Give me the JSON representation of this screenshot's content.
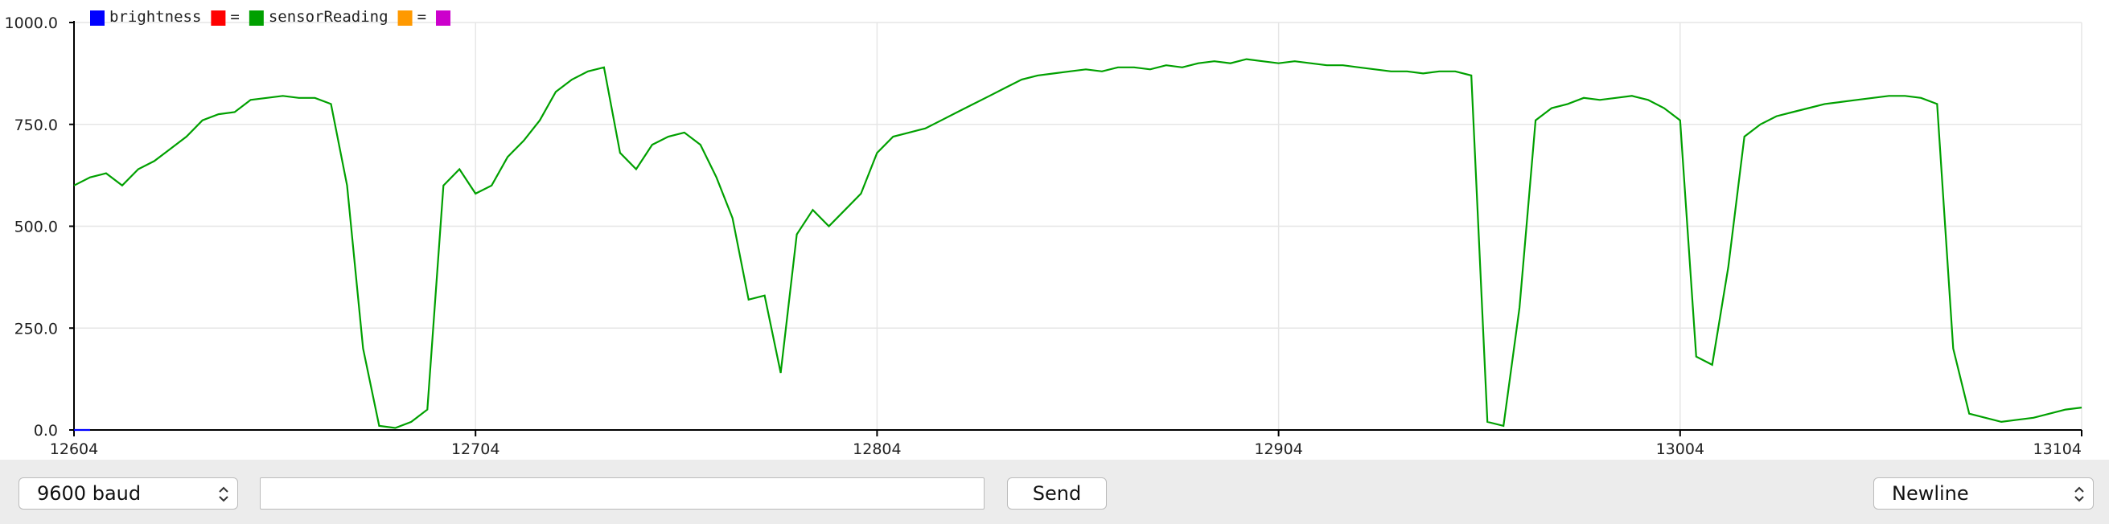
{
  "chart_data": {
    "type": "line",
    "legend_entries": [
      {
        "name": "brightness",
        "color": "#0000ff"
      },
      {
        "name": "=",
        "color": "#ff0000"
      },
      {
        "name": "sensorReading",
        "color": "#00a000"
      },
      {
        "name": "=",
        "color": "#ff9900"
      },
      {
        "color": "#cc00cc"
      }
    ],
    "series": [
      {
        "color": "#0000ff",
        "x": [
          12604,
          12606,
          12608
        ],
        "values": [
          0,
          0,
          0
        ]
      },
      {
        "color": "#00a000",
        "x": [
          12604,
          12608,
          12612,
          12616,
          12620,
          12624,
          12628,
          12632,
          12636,
          12640,
          12644,
          12648,
          12652,
          12656,
          12660,
          12664,
          12668,
          12672,
          12676,
          12680,
          12684,
          12688,
          12692,
          12696,
          12700,
          12704,
          12708,
          12712,
          12716,
          12720,
          12724,
          12728,
          12732,
          12736,
          12740,
          12744,
          12748,
          12752,
          12756,
          12760,
          12764,
          12768,
          12772,
          12776,
          12780,
          12784,
          12788,
          12792,
          12796,
          12800,
          12804,
          12808,
          12812,
          12816,
          12820,
          12824,
          12828,
          12832,
          12836,
          12840,
          12844,
          12848,
          12852,
          12856,
          12860,
          12864,
          12868,
          12872,
          12876,
          12880,
          12884,
          12888,
          12892,
          12896,
          12900,
          12904,
          12908,
          12912,
          12916,
          12920,
          12924,
          12928,
          12932,
          12936,
          12940,
          12944,
          12948,
          12952,
          12956,
          12960,
          12964,
          12968,
          12972,
          12976,
          12980,
          12984,
          12988,
          12992,
          12996,
          13000,
          13004,
          13008,
          13012,
          13016,
          13020,
          13024,
          13028,
          13032,
          13036,
          13040,
          13044,
          13048,
          13052,
          13056,
          13060,
          13064,
          13068,
          13072,
          13076,
          13080,
          13084,
          13088,
          13092,
          13096,
          13100,
          13104
        ],
        "values": [
          600,
          620,
          630,
          600,
          640,
          660,
          690,
          720,
          760,
          775,
          780,
          810,
          815,
          820,
          815,
          815,
          800,
          600,
          200,
          10,
          5,
          20,
          50,
          600,
          640,
          580,
          600,
          670,
          710,
          760,
          830,
          860,
          880,
          890,
          680,
          640,
          700,
          720,
          730,
          700,
          620,
          520,
          320,
          330,
          140,
          480,
          540,
          500,
          540,
          580,
          680,
          720,
          730,
          740,
          760,
          780,
          800,
          820,
          840,
          860,
          870,
          875,
          880,
          885,
          880,
          890,
          890,
          885,
          895,
          890,
          900,
          905,
          900,
          910,
          905,
          900,
          905,
          900,
          895,
          895,
          890,
          885,
          880,
          880,
          875,
          880,
          880,
          870,
          20,
          10,
          300,
          760,
          790,
          800,
          815,
          810,
          815,
          820,
          810,
          790,
          760,
          180,
          160,
          400,
          720,
          750,
          770,
          780,
          790,
          800,
          805,
          810,
          815,
          820,
          820,
          815,
          800,
          200,
          40,
          30,
          20,
          25,
          30,
          40,
          50,
          55
        ]
      }
    ],
    "xlim": [
      12604,
      13104
    ],
    "xticks": [
      12604,
      12704,
      12804,
      12904,
      13004,
      13104
    ],
    "ylim": [
      0,
      1000
    ],
    "yticks": [
      {
        "value": 0,
        "label": "0.0"
      },
      {
        "value": 250,
        "label": "250.0"
      },
      {
        "value": 500,
        "label": "500.0"
      },
      {
        "value": 750,
        "label": "750.0"
      },
      {
        "value": 1000,
        "label": "1000.0"
      }
    ],
    "grid": true
  },
  "controls": {
    "baud": "9600 baud",
    "send": "Send",
    "line_ending": "Newline"
  }
}
